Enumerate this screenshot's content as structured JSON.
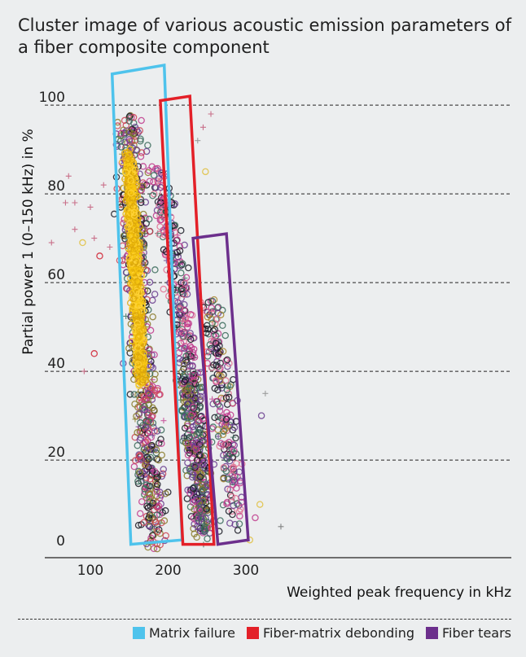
{
  "chart_data": {
    "type": "scatter",
    "title": "Cluster image of various acoustic emission parameters of a fiber composite component",
    "xlabel": "Weighted peak frequency in kHz",
    "ylabel": "Partial power 1 (0–150 kHz) in %",
    "x_ticks": [
      100,
      200,
      300
    ],
    "y_ticks": [
      0,
      20,
      40,
      60,
      80,
      100
    ],
    "xlim": [
      0,
      380
    ],
    "ylim": [
      -2,
      103
    ],
    "grid": "horizontal dashed",
    "legend_position": "bottom-right",
    "legend": [
      {
        "label": "Matrix failure",
        "color": "#4ec3ec"
      },
      {
        "label": "Fiber-matrix debonding",
        "color": "#e32028"
      },
      {
        "label": "Fiber tears",
        "color": "#6c2f8c"
      }
    ],
    "clusters": [
      {
        "legend_label": "Matrix failure",
        "color": "#4ec3ec",
        "polygon": [
          [
            128,
            107
          ],
          [
            195,
            109
          ],
          [
            218,
            2
          ],
          [
            152,
            1
          ]
        ]
      },
      {
        "legend_label": "Fiber-matrix debonding",
        "color": "#e32028",
        "polygon": [
          [
            190,
            101
          ],
          [
            228,
            102
          ],
          [
            259,
            1
          ],
          [
            219,
            1
          ]
        ]
      },
      {
        "legend_label": "Fiber tears",
        "color": "#6c2f8c",
        "polygon": [
          [
            232,
            70
          ],
          [
            275,
            71
          ],
          [
            303,
            2
          ],
          [
            264,
            1
          ]
        ]
      }
    ],
    "point_bands": [
      {
        "y_top": 97,
        "y_bottom": 2,
        "x_at_top": 148,
        "x_at_bottom": 182,
        "spread": 16,
        "count": 700,
        "colors": [
          "#1a1a24",
          "#6a3d8e",
          "#c03a8c",
          "#8a7a2a",
          "#3a6a5a",
          "#cc4455"
        ]
      },
      {
        "y_top": 88,
        "y_bottom": 38,
        "x_at_top": 150,
        "x_at_bottom": 166,
        "spread": 6,
        "count": 900,
        "colors": [
          "#f8c812",
          "#e8b40a",
          "#ffd43a",
          "#d9a40a"
        ]
      },
      {
        "y_top": 85,
        "y_bottom": 42,
        "x_at_top": 190,
        "x_at_bottom": 226,
        "spread": 12,
        "count": 260,
        "colors": [
          "#1a1a24",
          "#6a3d8e",
          "#c03a8c",
          "#3a6a5a",
          "#e07090"
        ]
      },
      {
        "y_top": 40,
        "y_bottom": 3,
        "x_at_top": 225,
        "x_at_bottom": 248,
        "spread": 14,
        "count": 420,
        "colors": [
          "#1a1a24",
          "#6a3d8e",
          "#c03a8c",
          "#8a7a2a",
          "#3a6a5a"
        ]
      },
      {
        "y_top": 56,
        "y_bottom": 5,
        "x_at_top": 255,
        "x_at_bottom": 290,
        "spread": 14,
        "count": 230,
        "colors": [
          "#1a1a24",
          "#6a3d8e",
          "#c03a8c",
          "#3a6a5a",
          "#aa8830",
          "#e07090"
        ]
      }
    ],
    "outliers": [
      {
        "x": 42,
        "y": 98,
        "color": "#555577",
        "marker": "circle"
      },
      {
        "x": 72,
        "y": 84,
        "color": "#c05070",
        "marker": "plus"
      },
      {
        "x": 68,
        "y": 78,
        "color": "#c05070",
        "marker": "plus"
      },
      {
        "x": 80,
        "y": 78,
        "color": "#c05070",
        "marker": "plus"
      },
      {
        "x": 80,
        "y": 72,
        "color": "#c05070",
        "marker": "plus"
      },
      {
        "x": 50,
        "y": 69,
        "color": "#c05070",
        "marker": "plus"
      },
      {
        "x": 90,
        "y": 69,
        "color": "#e0c040",
        "marker": "circle"
      },
      {
        "x": 105,
        "y": 70,
        "color": "#c05070",
        "marker": "plus"
      },
      {
        "x": 100,
        "y": 77,
        "color": "#c05070",
        "marker": "plus"
      },
      {
        "x": 112,
        "y": 66,
        "color": "#d02030",
        "marker": "circle"
      },
      {
        "x": 125,
        "y": 68,
        "color": "#c05070",
        "marker": "plus"
      },
      {
        "x": 117,
        "y": 82,
        "color": "#c05070",
        "marker": "plus"
      },
      {
        "x": 105,
        "y": 44,
        "color": "#d02030",
        "marker": "circle"
      },
      {
        "x": 92,
        "y": 40,
        "color": "#c05070",
        "marker": "plus"
      },
      {
        "x": 345,
        "y": 5,
        "color": "#666666",
        "marker": "plus"
      },
      {
        "x": 320,
        "y": 30,
        "color": "#6a3d8e",
        "marker": "circle"
      },
      {
        "x": 325,
        "y": 35,
        "color": "#888888",
        "marker": "plus"
      },
      {
        "x": 318,
        "y": 10,
        "color": "#e0c040",
        "marker": "circle"
      },
      {
        "x": 312,
        "y": 7,
        "color": "#c03a8c",
        "marker": "circle"
      },
      {
        "x": 305,
        "y": 2,
        "color": "#e0c040",
        "marker": "circle"
      },
      {
        "x": 255,
        "y": 98,
        "color": "#c05070",
        "marker": "plus"
      },
      {
        "x": 245,
        "y": 95,
        "color": "#c05070",
        "marker": "plus"
      },
      {
        "x": 238,
        "y": 92,
        "color": "#888888",
        "marker": "plus"
      },
      {
        "x": 248,
        "y": 85,
        "color": "#e0c040",
        "marker": "circle"
      }
    ]
  }
}
